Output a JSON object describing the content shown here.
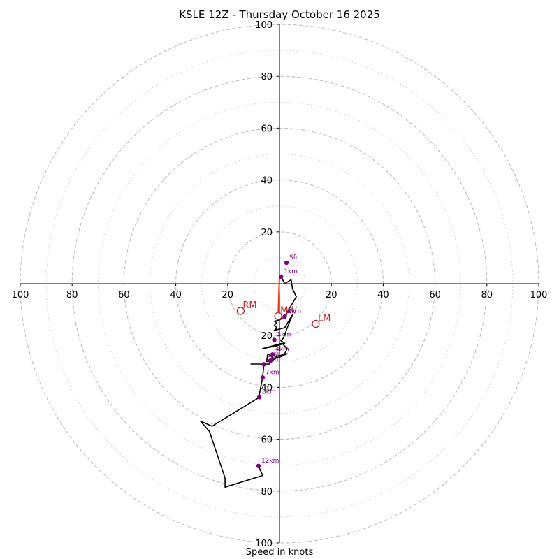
{
  "chart_data": {
    "type": "hodograph",
    "title": "KSLE 12Z - Thursday October 16 2025",
    "xlabel": "Speed in knots",
    "axis_range": [
      -100,
      100
    ],
    "ring_major_knots": [
      20,
      40,
      60,
      80,
      100
    ],
    "ring_minor_knots": [
      10,
      30,
      50,
      70,
      90
    ],
    "x_tick_labels": [
      "100",
      "80",
      "60",
      "40",
      "20",
      "20",
      "40",
      "60",
      "80",
      "100"
    ],
    "y_tick_labels_top": [
      "100",
      "80",
      "60",
      "40",
      "20"
    ],
    "y_tick_labels_bottom": [
      "20",
      "40",
      "60",
      "80",
      "100"
    ],
    "wind_profile": [
      {
        "u": 0.5,
        "v": 3
      },
      {
        "u": 2,
        "v": 0
      },
      {
        "u": 4.5,
        "v": 1.5
      },
      {
        "u": 5,
        "v": -2
      },
      {
        "u": 6.5,
        "v": -5
      },
      {
        "u": 3,
        "v": -11
      },
      {
        "u": 2.5,
        "v": -12.5
      },
      {
        "u": 0,
        "v": -14
      },
      {
        "u": -2,
        "v": -14.5
      },
      {
        "u": -1,
        "v": -15
      },
      {
        "u": -2,
        "v": -16
      },
      {
        "u": -1,
        "v": -17
      },
      {
        "u": -2,
        "v": -18
      },
      {
        "u": 2,
        "v": -17
      },
      {
        "u": 5,
        "v": -12
      },
      {
        "u": 3,
        "v": -17
      },
      {
        "u": 1.5,
        "v": -21
      },
      {
        "u": 0.5,
        "v": -22
      },
      {
        "u": 2,
        "v": -23
      },
      {
        "u": -1,
        "v": -24
      },
      {
        "u": -6.5,
        "v": -25
      },
      {
        "u": 1,
        "v": -23
      },
      {
        "u": 3,
        "v": -25
      },
      {
        "u": 2,
        "v": -27
      },
      {
        "u": 1,
        "v": -28
      },
      {
        "u": -2,
        "v": -29
      },
      {
        "u": -4.5,
        "v": -27
      },
      {
        "u": -5,
        "v": -30
      },
      {
        "u": -4,
        "v": -30
      },
      {
        "u": -2,
        "v": -29
      },
      {
        "u": 3,
        "v": -27
      },
      {
        "u": -1,
        "v": -28
      },
      {
        "u": -3,
        "v": -30
      },
      {
        "u": -4,
        "v": -31
      },
      {
        "u": -11,
        "v": -31
      },
      {
        "u": -6,
        "v": -31
      },
      {
        "u": -6.5,
        "v": -36
      },
      {
        "u": -8,
        "v": -44
      },
      {
        "u": -26,
        "v": -55
      },
      {
        "u": -30.5,
        "v": -53
      },
      {
        "u": -27,
        "v": -57
      },
      {
        "u": -21,
        "v": -75
      },
      {
        "u": -21,
        "v": -78.5
      },
      {
        "u": -6.5,
        "v": -74
      },
      {
        "u": -8,
        "v": -70.5
      }
    ],
    "height_markers": [
      {
        "label": "Sfc",
        "u": 2.7,
        "v": 8.1
      },
      {
        "label": "1km",
        "u": 0.6,
        "v": 2.7
      },
      {
        "label": "2km",
        "u": 2.0,
        "v": -12.7
      },
      {
        "label": "3km",
        "u": -2.0,
        "v": -21.7
      },
      {
        "label": "4km",
        "u": -2.7,
        "v": -27.3
      },
      {
        "label": "5km",
        "u": -3.5,
        "v": -29.7
      },
      {
        "label": "6km",
        "u": -6.0,
        "v": -31.1
      },
      {
        "label": "7km",
        "u": -6.5,
        "v": -36.2
      },
      {
        "label": "8km",
        "u": -7.8,
        "v": -43.8
      },
      {
        "label": "12km",
        "u": -8.1,
        "v": -70.3
      }
    ],
    "storm_motion": [
      {
        "label": "RM",
        "u": -15,
        "v": -10.5
      },
      {
        "label": "LM",
        "u": 14,
        "v": -15.5
      },
      {
        "label": "MW",
        "u": -0.5,
        "v": -12.5
      }
    ],
    "shear_vector": {
      "from_u": 0,
      "from_v": 3,
      "to_u": -0.5,
      "to_v": -12.5
    },
    "colors": {
      "profile": "#000000",
      "markers": "#800080",
      "storm_motion": "#cc2222",
      "shear": "#ff2a00",
      "ring": "#b8b8b8",
      "axis": "#000000"
    }
  }
}
